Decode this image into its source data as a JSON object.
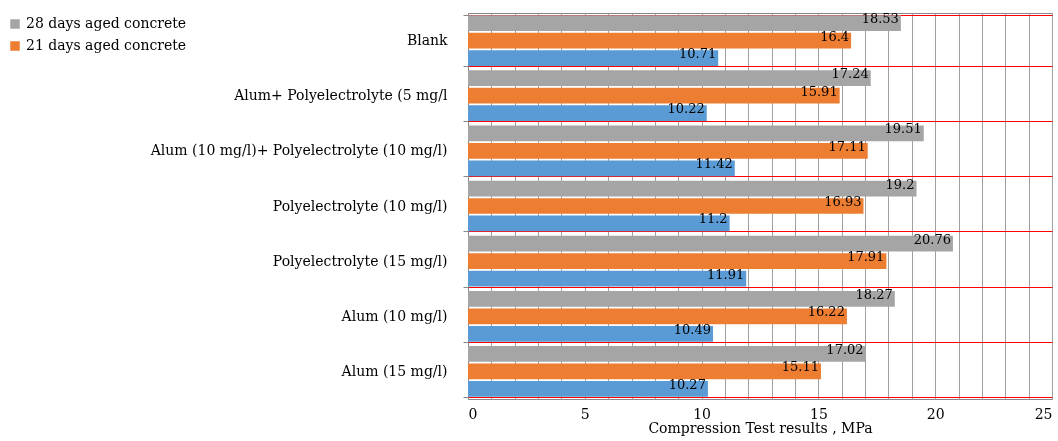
{
  "chart_data": {
    "type": "bar",
    "orientation": "horizontal",
    "xlabel": "Compression Test results , MPa",
    "categories": [
      "Blank",
      "Alum+ Polyelectrolyte (5 mg/l",
      "Alum (10 mg/l)+ Polyelectrolyte (10 mg/l)",
      "Polyelectrolyte (10 mg/l)",
      "Polyelectrolyte (15 mg/l)",
      "Alum  (10 mg/l)",
      "Alum (15 mg/l)"
    ],
    "series": [
      {
        "name": "28 days aged concrete",
        "color": "#a5a5a5",
        "values": [
          18.53,
          17.24,
          19.51,
          19.2,
          20.76,
          18.27,
          17.02
        ]
      },
      {
        "name": "21 days aged concrete",
        "color": "#ed7d31",
        "values": [
          16.4,
          15.91,
          17.11,
          16.93,
          17.91,
          16.22,
          15.11
        ]
      },
      {
        "color": "#5b9bd5",
        "values": [
          10.71,
          10.22,
          11.42,
          11.2,
          11.91,
          10.49,
          10.27
        ]
      }
    ],
    "xlim": [
      0,
      25
    ],
    "xticks": [
      0,
      {
        "value": 1,
        "label": null
      },
      {
        "value": 2,
        "label": null
      },
      {
        "value": 3,
        "label": null
      },
      {
        "value": 4,
        "label": null
      },
      5,
      {
        "value": 6,
        "label": null
      },
      {
        "value": 7,
        "label": null
      },
      {
        "value": 8,
        "label": null
      },
      {
        "value": 9,
        "label": null
      },
      10,
      {
        "value": 11,
        "label": null
      },
      {
        "value": 12,
        "label": null
      },
      {
        "value": 13,
        "label": null
      },
      {
        "value": 14,
        "label": null
      },
      15,
      {
        "value": 16,
        "label": null
      },
      {
        "value": 17,
        "label": null
      },
      {
        "value": 18,
        "label": null
      },
      {
        "value": 19,
        "label": null
      },
      20,
      {
        "value": 21,
        "label": null
      },
      {
        "value": 22,
        "label": null
      },
      {
        "value": 23,
        "label": null
      },
      {
        "value": 24,
        "label": null
      },
      25
    ],
    "grid": true,
    "legend": "top left",
    "data_labels": true
  }
}
